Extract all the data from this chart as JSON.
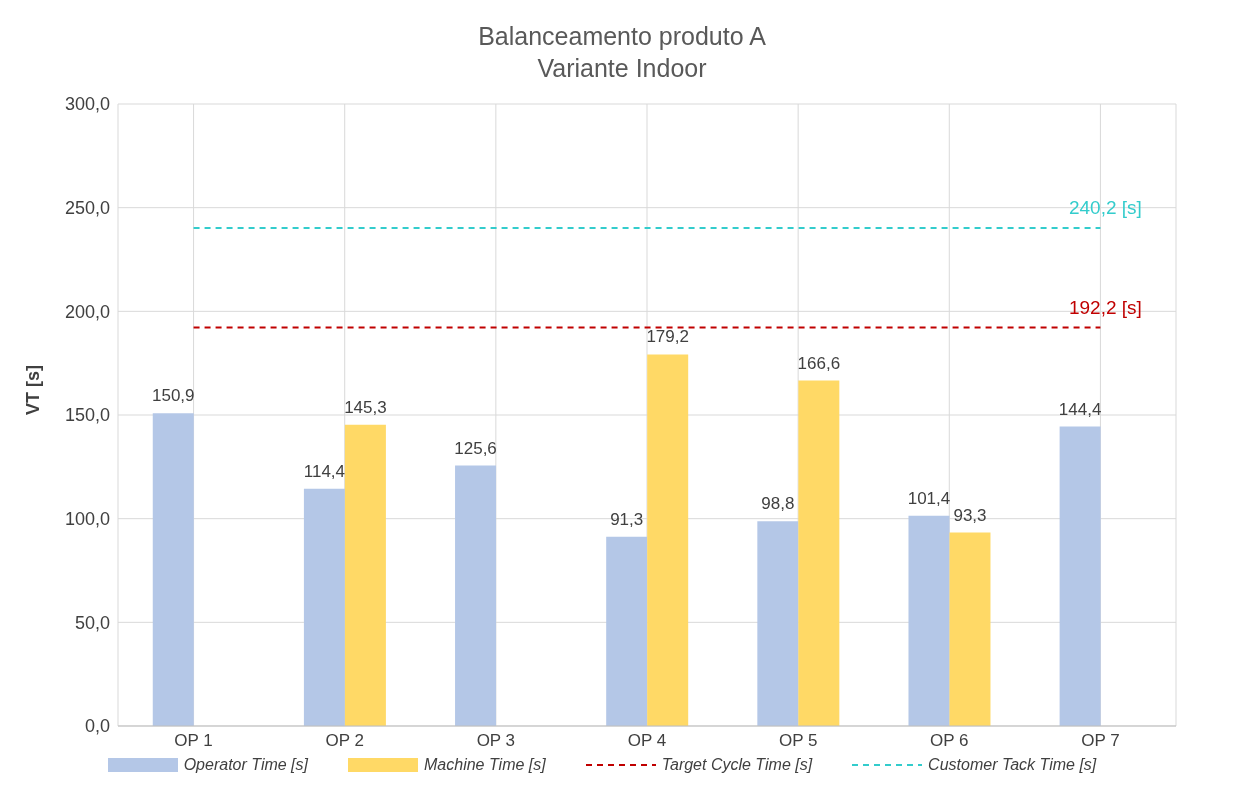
{
  "chart_data": {
    "type": "bar",
    "title": "Balanceamento produto A",
    "subtitle": "Variante Indoor",
    "ylabel": "VT [s]",
    "categories": [
      "OP 1",
      "OP 2",
      "OP 3",
      "OP 4",
      "OP 5",
      "OP 6",
      "OP 7"
    ],
    "series": [
      {
        "name": "Operator Time [s]",
        "color": "#b4c7e7",
        "values": [
          150.9,
          114.4,
          125.6,
          91.3,
          98.8,
          101.4,
          144.4
        ],
        "value_labels": [
          "150,9",
          "114,4",
          "125,6",
          "91,3",
          "98,8",
          "101,4",
          "144,4"
        ]
      },
      {
        "name": "Machine Time  [s]",
        "color": "#ffd966",
        "values": [
          null,
          145.3,
          null,
          179.2,
          166.6,
          93.3,
          null
        ],
        "value_labels": [
          null,
          "145,3",
          null,
          "179,2",
          "166,6",
          "93,3",
          null
        ]
      },
      {
        "name": "Target Cycle Time [s]",
        "type": "line",
        "color": "#c00000",
        "line_style": "dashed",
        "marker": "none",
        "values": [
          192.2,
          192.2,
          192.2,
          192.2,
          192.2,
          192.2,
          192.2
        ]
      },
      {
        "name": "Customer Tack Time [s]",
        "type": "line",
        "color": "#33cccc",
        "line_style": "dashed",
        "marker": "none",
        "values": [
          240.2,
          240.2,
          240.2,
          240.2,
          240.2,
          240.2,
          240.2
        ]
      }
    ],
    "annotations": [
      {
        "text": "192,2  [s]",
        "x": "OP 7",
        "y": 192.2
      },
      {
        "text": "240,2 [s]",
        "x": "OP 7",
        "y": 240.2
      }
    ],
    "ylim": [
      0,
      300
    ],
    "yticks": [
      {
        "value": 0,
        "label": "0,0"
      },
      {
        "value": 50,
        "label": "50,0"
      },
      {
        "value": 100,
        "label": "100,0"
      },
      {
        "value": 150,
        "label": "150,0"
      },
      {
        "value": 200,
        "label": "200,0"
      },
      {
        "value": 250,
        "label": "250,0"
      },
      {
        "value": 300,
        "label": "300,0"
      }
    ],
    "grid": true,
    "legend": "bottom"
  }
}
